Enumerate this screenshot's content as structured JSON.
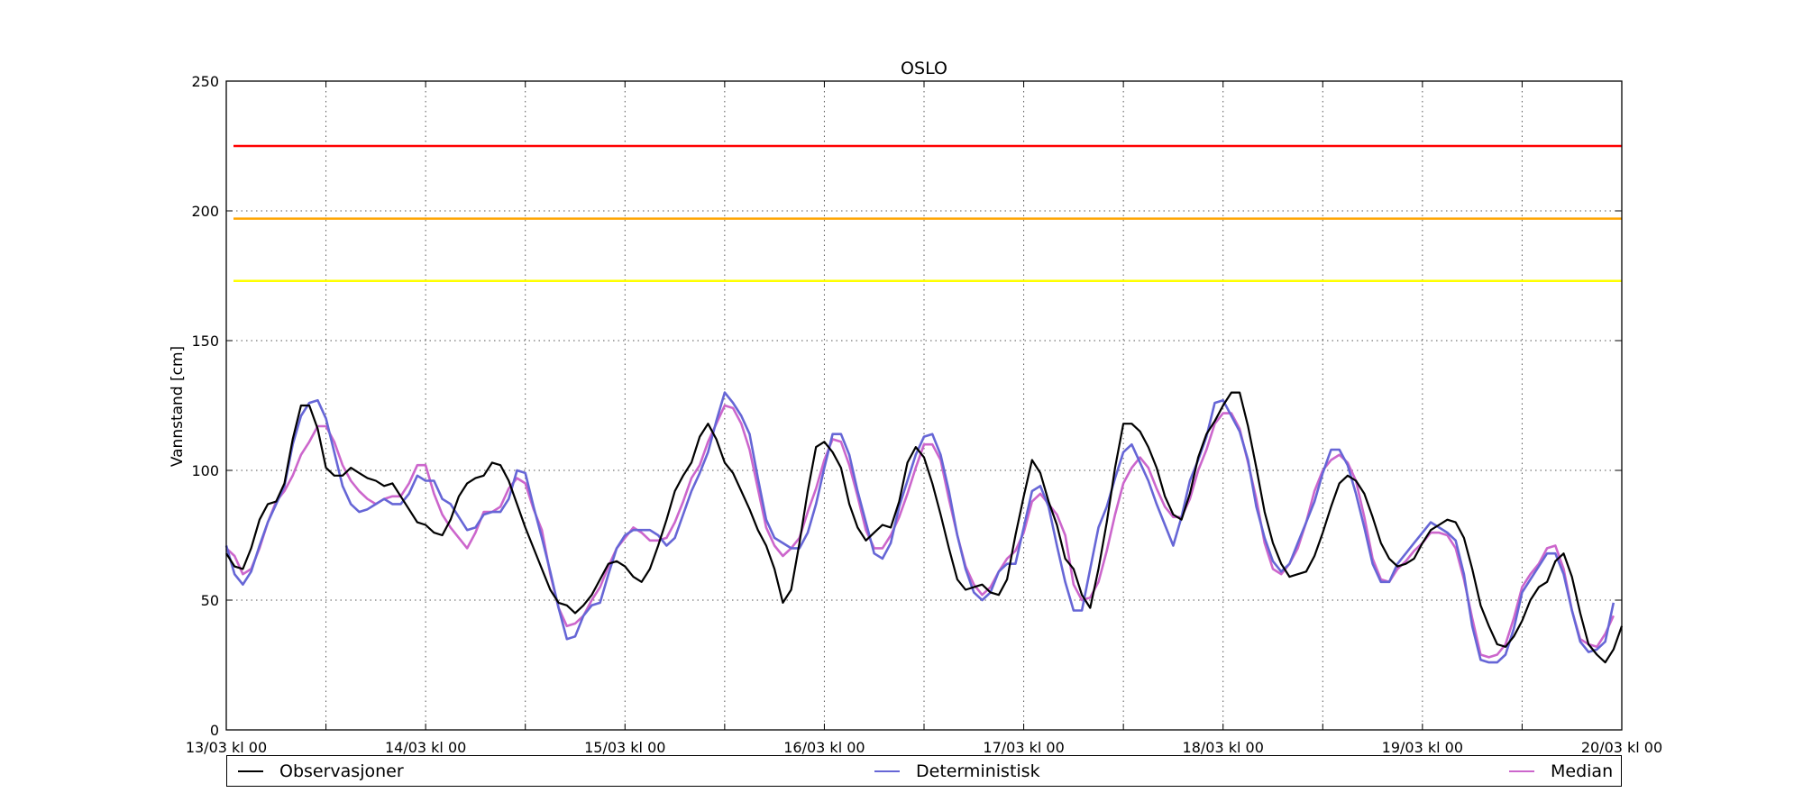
{
  "chart_data": {
    "type": "line",
    "title": "OSLO",
    "xlabel": "",
    "ylabel": "Vannstand [cm]",
    "ylim": [
      0,
      250
    ],
    "yticks": [
      0,
      50,
      100,
      150,
      200,
      250
    ],
    "xlim_hours": [
      0,
      168
    ],
    "xtick_labels": [
      "13/03 kl 00",
      "14/03 kl 00",
      "15/03 kl 00",
      "16/03 kl 00",
      "17/03 kl 00",
      "18/03 kl 00",
      "19/03 kl 00",
      "20/03 kl 00"
    ],
    "grid": true,
    "legend_position": "bottom",
    "thresholds": [
      {
        "value": 225,
        "color": "#ff0000"
      },
      {
        "value": 197,
        "color": "#ffa500"
      },
      {
        "value": 173,
        "color": "#ffff00"
      }
    ],
    "x_step_hours": 1,
    "series": [
      {
        "name": "Observasjoner",
        "color": "#000000",
        "values": [
          68,
          63,
          62,
          70,
          81,
          87,
          88,
          95,
          112,
          125,
          125,
          116,
          101,
          98,
          98,
          101,
          99,
          97,
          96,
          94,
          95,
          90,
          85,
          80,
          79,
          76,
          75,
          81,
          90,
          95,
          97,
          98,
          103,
          102,
          96,
          87,
          78,
          70,
          62,
          54,
          49,
          48,
          45,
          48,
          52,
          58,
          64,
          65,
          63,
          59,
          57,
          62,
          71,
          81,
          92,
          98,
          103,
          113,
          118,
          112,
          103,
          99,
          92,
          85,
          77,
          71,
          62,
          49,
          54,
          72,
          92,
          109,
          111,
          107,
          101,
          87,
          78,
          73,
          76,
          79,
          78,
          88,
          103,
          109,
          105,
          95,
          83,
          70,
          58,
          54,
          55,
          56,
          53,
          52,
          58,
          75,
          90,
          104,
          99,
          88,
          79,
          66,
          62,
          52,
          47,
          62,
          80,
          101,
          118,
          118,
          115,
          109,
          101,
          90,
          83,
          81,
          91,
          105,
          114,
          119,
          125,
          130,
          130,
          117,
          101,
          84,
          72,
          64,
          59,
          60,
          61,
          67,
          76,
          86,
          95,
          98,
          96,
          91,
          82,
          72,
          66,
          63,
          64,
          66,
          72,
          77,
          79,
          81,
          80,
          74,
          62,
          48,
          40,
          33,
          32,
          36,
          42,
          50,
          55,
          57,
          65,
          68,
          59,
          45,
          33,
          29,
          26,
          31,
          40
        ],
        "points": [
          [
            0.7,
            68
          ]
        ]
      },
      {
        "name": "Deterministisk",
        "color": "#6666d6",
        "values": [
          71,
          60,
          56,
          61,
          71,
          80,
          87,
          94,
          110,
          121,
          126,
          127,
          120,
          107,
          94,
          87,
          84,
          85,
          87,
          89,
          87,
          87,
          91,
          98,
          96,
          96,
          89,
          87,
          82,
          77,
          78,
          83,
          84,
          84,
          89,
          100,
          99,
          86,
          74,
          61,
          47,
          35,
          36,
          44,
          48,
          49,
          60,
          70,
          75,
          77,
          77,
          77,
          75,
          71,
          74,
          83,
          92,
          99,
          107,
          119,
          130,
          126,
          121,
          114,
          97,
          81,
          74,
          72,
          70,
          70,
          76,
          87,
          101,
          114,
          114,
          106,
          92,
          80,
          68,
          66,
          72,
          86,
          96,
          106,
          113,
          114,
          106,
          92,
          75,
          62,
          53,
          50,
          53,
          61,
          64,
          64,
          78,
          92,
          94,
          86,
          71,
          57,
          46,
          46,
          62,
          78,
          86,
          97,
          107,
          110,
          103,
          96,
          87,
          79,
          71,
          82,
          96,
          104,
          113,
          126,
          127,
          121,
          115,
          104,
          86,
          74,
          65,
          61,
          64,
          72,
          80,
          88,
          99,
          108,
          108,
          102,
          91,
          78,
          64,
          57,
          57,
          64,
          68,
          72,
          76,
          80,
          78,
          76,
          73,
          60,
          40,
          27,
          26,
          26,
          29,
          39,
          53,
          58,
          63,
          68,
          68,
          60,
          46,
          34,
          30,
          31,
          34,
          49
        ],
        "points": [
          [
            0.7,
            71
          ]
        ]
      },
      {
        "name": "Median",
        "color": "#cc66cc",
        "values": [
          70,
          67,
          60,
          62,
          70,
          80,
          88,
          92,
          98,
          106,
          111,
          117,
          117,
          111,
          102,
          96,
          92,
          89,
          87,
          89,
          90,
          90,
          95,
          102,
          102,
          91,
          83,
          78,
          74,
          70,
          76,
          84,
          84,
          86,
          93,
          97,
          95,
          85,
          77,
          60,
          47,
          40,
          41,
          44,
          50,
          55,
          63,
          70,
          74,
          78,
          76,
          73,
          73,
          74,
          80,
          88,
          97,
          102,
          111,
          118,
          125,
          124,
          118,
          108,
          93,
          78,
          71,
          67,
          70,
          74,
          84,
          93,
          104,
          112,
          111,
          102,
          90,
          77,
          70,
          70,
          75,
          82,
          91,
          101,
          110,
          110,
          104,
          89,
          75,
          63,
          56,
          52,
          55,
          61,
          66,
          69,
          76,
          88,
          91,
          87,
          83,
          75,
          56,
          50,
          51,
          57,
          69,
          83,
          95,
          101,
          105,
          101,
          93,
          86,
          82,
          82,
          89,
          100,
          108,
          118,
          122,
          122,
          116,
          103,
          89,
          72,
          62,
          60,
          64,
          70,
          80,
          92,
          100,
          104,
          106,
          103,
          96,
          82,
          66,
          58,
          57,
          62,
          65,
          69,
          72,
          76,
          76,
          75,
          70,
          58,
          43,
          29,
          28,
          29,
          33,
          43,
          55,
          60,
          64,
          70,
          71,
          62,
          46,
          35,
          33,
          32,
          37,
          44
        ]
      }
    ]
  }
}
